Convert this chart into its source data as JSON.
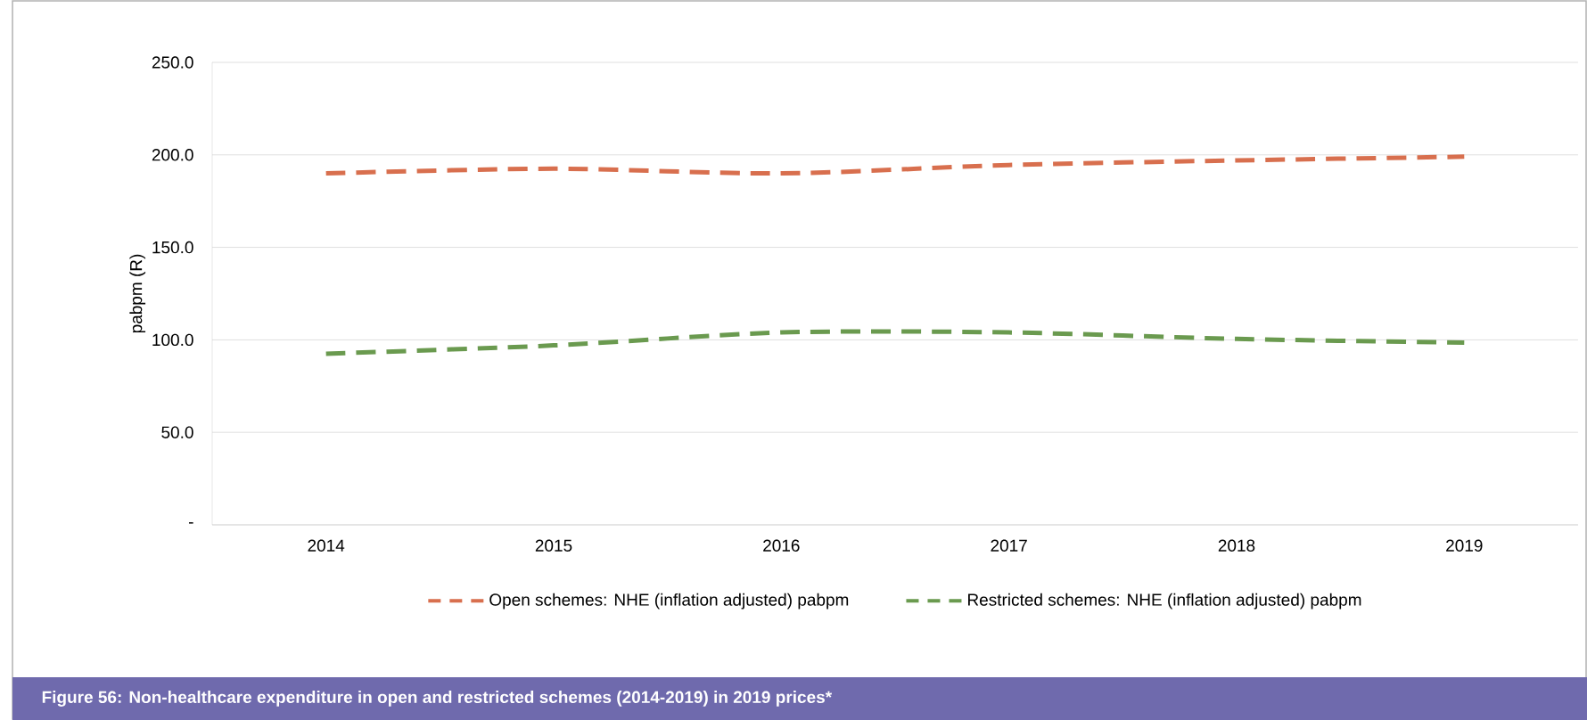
{
  "chart_data": {
    "type": "line",
    "title": "Figure  56: Non-healthcare expenditure in open and restricted schemes (2014-2019) in 2019 prices*",
    "ylabel": "pabpm (R)",
    "categories": [
      "2014",
      "2015",
      "2016",
      "2017",
      "2018",
      "2019"
    ],
    "series": [
      {
        "name": "Open schemes: NHE (inflation adjusted) pabpm",
        "color": "#d86f4e",
        "values": [
          190,
          192.5,
          190,
          194.5,
          197,
          199
        ]
      },
      {
        "name": "Restricted schemes: NHE (inflation adjusted) pabpm",
        "color": "#6a9a4f",
        "values": [
          92.5,
          97,
          104,
          104,
          100.5,
          98.5
        ]
      }
    ],
    "ylim": [
      0,
      250
    ],
    "yticks": [
      {
        "value": 0,
        "label": "-"
      },
      {
        "value": 50,
        "label": "50.0"
      },
      {
        "value": 100,
        "label": "100.0"
      },
      {
        "value": 150,
        "label": "150.0"
      },
      {
        "value": 200,
        "label": "200.0"
      },
      {
        "value": 250,
        "label": "250.0"
      }
    ],
    "grid": "y",
    "legend": "bottom",
    "line_style": "dashed",
    "marker": "none"
  }
}
